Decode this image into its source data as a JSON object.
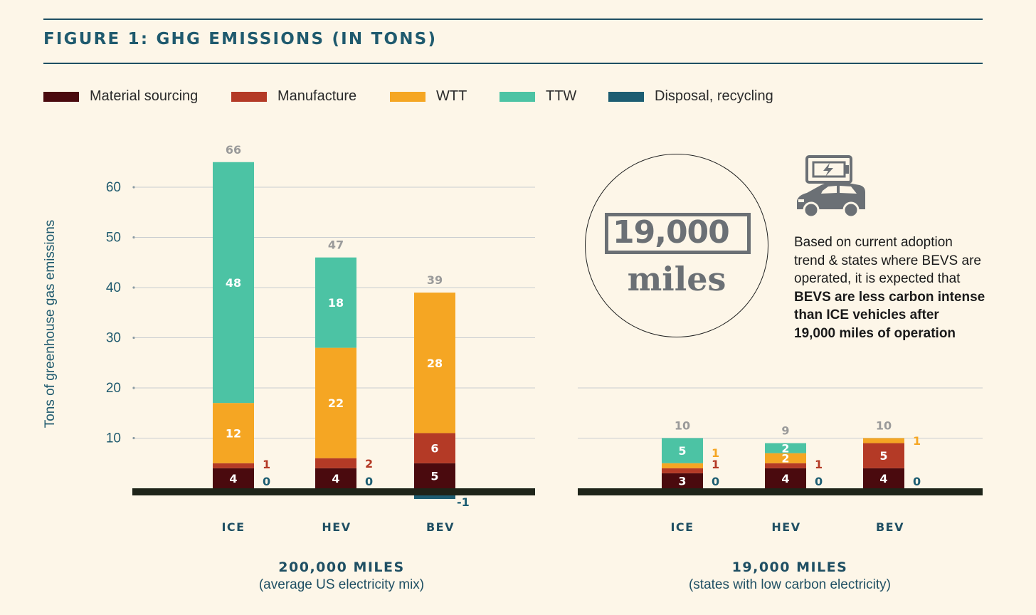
{
  "title": "FIGURE 1: GHG EMISSIONS (IN TONS)",
  "colors": {
    "material": "#4a0a0e",
    "manufacture": "#b43a26",
    "wtt": "#f5a623",
    "ttw": "#4cc3a4",
    "disposal": "#1d5d72",
    "axis_text": "#1f5a6e",
    "total_text": "#9a9a9a",
    "baseline": "#1e2419"
  },
  "legend": [
    {
      "label": "Material sourcing",
      "color": "#4a0a0e"
    },
    {
      "label": "Manufacture",
      "color": "#b43a26"
    },
    {
      "label": "WTT",
      "color": "#f5a623"
    },
    {
      "label": "TTW",
      "color": "#4cc3a4"
    },
    {
      "label": "Disposal, recycling",
      "color": "#1d5d72"
    }
  ],
  "callout": {
    "line1": "Based on current adoption",
    "line2": "trend & states where BEVS are",
    "line3": "operated, it is expected that",
    "bold1": "BEVS are less carbon intense",
    "bold2": "than ICE vehicles after",
    "bold3": "19,000 miles of operation"
  },
  "badge": {
    "number": "19,000",
    "unit": "miles"
  },
  "icons": [
    "battery-charging-icon",
    "car-icon"
  ],
  "chart_data": [
    {
      "type": "bar",
      "stacked": true,
      "title": "200,000 MILES",
      "subtitle": "(average US electricity mix)",
      "ylabel": "Tons of greenhouse gas emissions",
      "yticks": [
        10,
        20,
        30,
        40,
        50,
        60
      ],
      "ylim": [
        0,
        66
      ],
      "grid": true,
      "categories": [
        "ICE",
        "HEV",
        "BEV"
      ],
      "totals": [
        66,
        47,
        39
      ],
      "series": [
        {
          "name": "Material sourcing",
          "values": [
            4,
            4,
            5
          ]
        },
        {
          "name": "Manufacture",
          "values": [
            1,
            2,
            6
          ]
        },
        {
          "name": "WTT",
          "values": [
            12,
            22,
            28
          ]
        },
        {
          "name": "TTW",
          "values": [
            48,
            18,
            0
          ]
        },
        {
          "name": "Disposal, recycling",
          "values": [
            0,
            0,
            -1
          ]
        }
      ]
    },
    {
      "type": "bar",
      "stacked": true,
      "title": "19,000 MILES",
      "subtitle": "(states with low carbon electricity)",
      "ylim": [
        0,
        66
      ],
      "grid": true,
      "categories": [
        "ICE",
        "HEV",
        "BEV"
      ],
      "totals": [
        10,
        9,
        10
      ],
      "series": [
        {
          "name": "Material sourcing",
          "values": [
            3,
            4,
            4
          ]
        },
        {
          "name": "Manufacture",
          "values": [
            1,
            1,
            5
          ]
        },
        {
          "name": "WTT",
          "values": [
            1,
            2,
            1
          ]
        },
        {
          "name": "TTW",
          "values": [
            5,
            2,
            0
          ]
        },
        {
          "name": "Disposal, recycling",
          "values": [
            0,
            0,
            0
          ]
        }
      ]
    }
  ]
}
